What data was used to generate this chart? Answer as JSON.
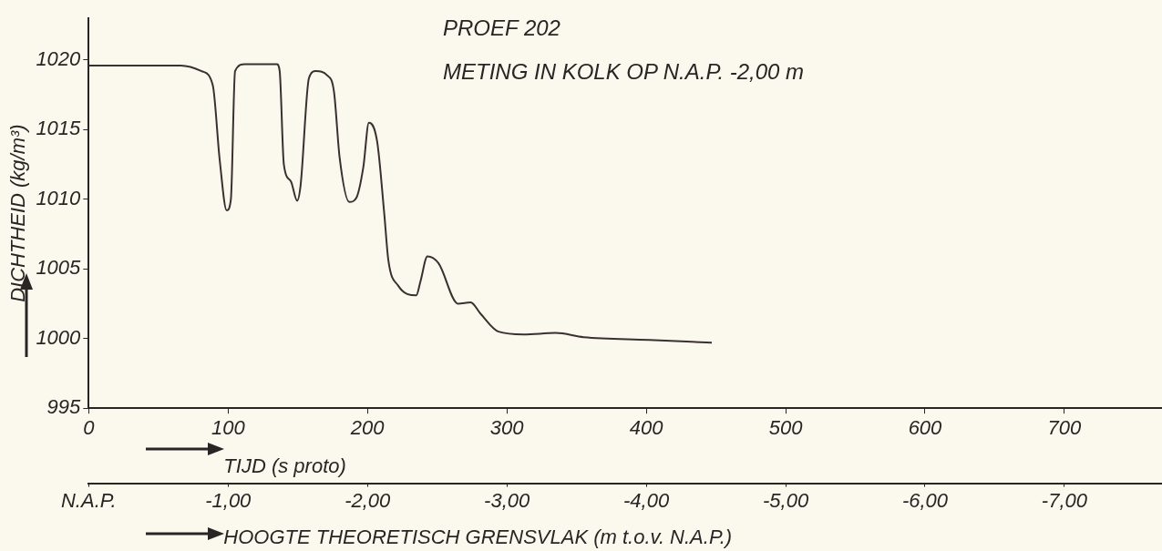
{
  "chart_data": {
    "type": "line",
    "title": "PROEF 202",
    "subtitle": "METING IN KOLK OP N.A.P. -2,00 m",
    "xlabel": "TIJD (s proto)",
    "ylabel": "DICHTHEID (kg/m³)",
    "x2label": "HOOGTE THEORETISCH GRENSVLAK (m t.o.v. N.A.P.)",
    "xlim": [
      0,
      770
    ],
    "xticks": [
      0,
      100,
      200,
      300,
      400,
      500,
      600,
      700
    ],
    "x2lim": [
      0,
      -7.7
    ],
    "x2ticks": [
      {
        "value": 0,
        "label": "N.A.P."
      },
      {
        "value": -1,
        "label": "-1,00"
      },
      {
        "value": -2,
        "label": "-2,00"
      },
      {
        "value": -3,
        "label": "-3,00"
      },
      {
        "value": -4,
        "label": "-4,00"
      },
      {
        "value": -5,
        "label": "-5,00"
      },
      {
        "value": -6,
        "label": "-6,00"
      },
      {
        "value": -7,
        "label": "-7,00"
      }
    ],
    "ylim": [
      995,
      1023
    ],
    "yticks": [
      995,
      1000,
      1005,
      1010,
      1015,
      1020
    ],
    "grid": false,
    "legend": false,
    "marker": "none",
    "line_style": "solid",
    "series": [
      {
        "color": "#3a3030",
        "x": [
          0,
          66,
          81,
          89,
          94,
          99,
          102,
          105,
          112,
          135,
          137,
          140,
          145,
          149.5,
          152,
          158,
          163,
          171,
          176,
          180,
          187,
          192,
          197,
          201,
          207,
          212,
          215,
          222,
          235,
          238,
          243,
          251,
          265,
          274,
          281,
          294,
          312,
          335,
          355,
          402,
          447
        ],
        "values": [
          1019.6,
          1019.6,
          1019.2,
          1018.2,
          1012.8,
          1009.2,
          1010,
          1019.2,
          1019.7,
          1019.7,
          1019.2,
          1012.5,
          1011.3,
          1009.9,
          1011,
          1018.7,
          1019.2,
          1018.9,
          1017.7,
          1013,
          1009.8,
          1010.1,
          1012.3,
          1015.5,
          1014.1,
          1009,
          1005.6,
          1003.8,
          1003.1,
          1004.1,
          1005.9,
          1005.4,
          1002.5,
          1002.6,
          1001.8,
          1000.5,
          1000.3,
          1000.4,
          1000.1,
          999.9,
          999.7
        ]
      }
    ]
  }
}
